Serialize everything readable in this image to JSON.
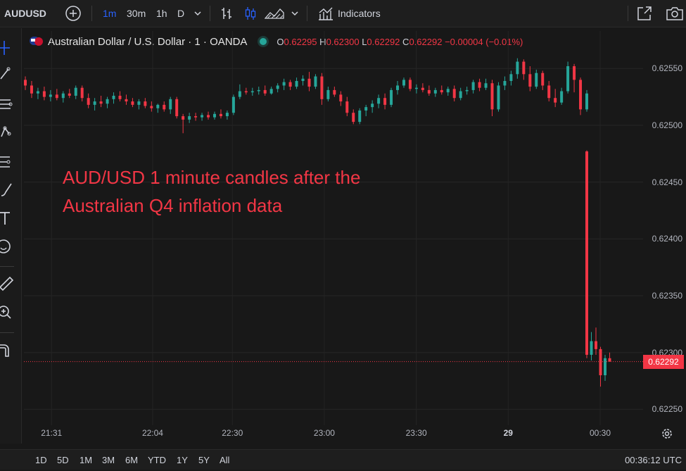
{
  "toolbar": {
    "symbol": "AUDUSD",
    "intervals": [
      "1m",
      "30m",
      "1h",
      "D"
    ],
    "active_interval": "1m",
    "indicators_label": "Indicators",
    "icons": [
      "add-symbol-icon",
      "chevron-down-icon",
      "bar-chart-icon",
      "candles-icon",
      "area-chart-icon",
      "chevron-down-icon",
      "indicators-icon",
      "fullscreen-icon",
      "camera-icon"
    ]
  },
  "left_tools": [
    "crosshair-icon",
    "trendline-icon",
    "fib-icon",
    "pattern-icon",
    "forecast-icon",
    "brush-icon",
    "text-icon",
    "emoji-icon",
    "ruler-icon",
    "zoom-icon",
    "magnet-icon"
  ],
  "legend": {
    "title": "Australian Dollar / U.S. Dollar · 1 · OANDA",
    "o_label": "O",
    "o_value": "0.62295",
    "h_label": "H",
    "h_value": "0.62300",
    "l_label": "L",
    "l_value": "0.62292",
    "c_label": "C",
    "c_value": "0.62292",
    "change": "−0.00004 (−0.01%)"
  },
  "annotation": {
    "line1": "AUD/USD 1 minute candles after the",
    "line2": "Australian Q4 inflation data"
  },
  "colors": {
    "up": "#26a69a",
    "down": "#f23645",
    "annotation": "#f23645",
    "background": "#181818"
  },
  "last_price": "0.62292",
  "bottom": {
    "ranges": [
      "1D",
      "5D",
      "1M",
      "3M",
      "6M",
      "YTD",
      "1Y",
      "5Y",
      "All"
    ],
    "clock": "00:36:12 UTC"
  },
  "chart_data": {
    "type": "candlestick",
    "title": "Australian Dollar / U.S. Dollar · 1 · OANDA",
    "ylim": [
      0.62236,
      0.62583
    ],
    "y_ticks": [
      "0.62550",
      "0.62500",
      "0.62450",
      "0.62400",
      "0.62350",
      "0.62300",
      "0.62250"
    ],
    "x_ticks": [
      "21:31",
      "22:04",
      "22:30",
      "23:00",
      "23:30",
      "29",
      "00:30"
    ],
    "x_range": [
      "21:22",
      "00:44"
    ],
    "candles": [
      [
        0.6254,
        0.62543,
        0.62531,
        0.62535
      ],
      [
        0.62535,
        0.62539,
        0.62524,
        0.62528
      ],
      [
        0.62528,
        0.62533,
        0.62523,
        0.6253
      ],
      [
        0.6253,
        0.62534,
        0.62522,
        0.62525
      ],
      [
        0.62525,
        0.62531,
        0.62521,
        0.62527
      ],
      [
        0.62527,
        0.62532,
        0.62522,
        0.62524
      ],
      [
        0.62524,
        0.6253,
        0.6252,
        0.62528
      ],
      [
        0.62528,
        0.62532,
        0.62524,
        0.62526
      ],
      [
        0.62526,
        0.62535,
        0.62523,
        0.62533
      ],
      [
        0.62533,
        0.62535,
        0.62521,
        0.62524
      ],
      [
        0.62524,
        0.62528,
        0.62515,
        0.62518
      ],
      [
        0.62518,
        0.62524,
        0.62513,
        0.62521
      ],
      [
        0.62521,
        0.62526,
        0.62516,
        0.62519
      ],
      [
        0.62519,
        0.62525,
        0.62515,
        0.62523
      ],
      [
        0.62523,
        0.62529,
        0.62519,
        0.62526
      ],
      [
        0.62526,
        0.6253,
        0.62521,
        0.62523
      ],
      [
        0.62523,
        0.62527,
        0.62518,
        0.62521
      ],
      [
        0.62521,
        0.62524,
        0.62516,
        0.62518
      ],
      [
        0.62518,
        0.62523,
        0.62514,
        0.62521
      ],
      [
        0.62521,
        0.62524,
        0.62515,
        0.62517
      ],
      [
        0.62517,
        0.62521,
        0.62512,
        0.62515
      ],
      [
        0.62515,
        0.62519,
        0.62511,
        0.62518
      ],
      [
        0.62518,
        0.62521,
        0.62512,
        0.62514
      ],
      [
        0.62514,
        0.62525,
        0.6251,
        0.62523
      ],
      [
        0.62523,
        0.62525,
        0.62506,
        0.62508
      ],
      [
        0.62508,
        0.6251,
        0.62493,
        0.62505
      ],
      [
        0.62505,
        0.62511,
        0.62502,
        0.62508
      ],
      [
        0.62508,
        0.62511,
        0.62504,
        0.62507
      ],
      [
        0.62507,
        0.62511,
        0.62504,
        0.62509
      ],
      [
        0.62509,
        0.62512,
        0.62505,
        0.62507
      ],
      [
        0.62507,
        0.62512,
        0.62505,
        0.6251
      ],
      [
        0.6251,
        0.62514,
        0.62506,
        0.62508
      ],
      [
        0.62508,
        0.62513,
        0.62505,
        0.62511
      ],
      [
        0.62511,
        0.62527,
        0.62509,
        0.62525
      ],
      [
        0.62525,
        0.62536,
        0.62523,
        0.6253
      ],
      [
        0.6253,
        0.62533,
        0.62527,
        0.62529
      ],
      [
        0.62529,
        0.62533,
        0.62526,
        0.6253
      ],
      [
        0.6253,
        0.62534,
        0.62527,
        0.62531
      ],
      [
        0.62531,
        0.62535,
        0.62526,
        0.62528
      ],
      [
        0.62528,
        0.62534,
        0.62527,
        0.62532
      ],
      [
        0.62532,
        0.62537,
        0.62529,
        0.62535
      ],
      [
        0.62535,
        0.62541,
        0.62531,
        0.62538
      ],
      [
        0.62538,
        0.6254,
        0.62531,
        0.62534
      ],
      [
        0.62534,
        0.62542,
        0.62532,
        0.62539
      ],
      [
        0.62539,
        0.62544,
        0.62535,
        0.62541
      ],
      [
        0.62541,
        0.62547,
        0.6253,
        0.62534
      ],
      [
        0.62534,
        0.62545,
        0.62532,
        0.62543
      ],
      [
        0.62543,
        0.62546,
        0.62518,
        0.62523
      ],
      [
        0.62523,
        0.62534,
        0.62521,
        0.62531
      ],
      [
        0.62531,
        0.62534,
        0.62525,
        0.62527
      ],
      [
        0.62527,
        0.6253,
        0.62517,
        0.62521
      ],
      [
        0.62521,
        0.62525,
        0.62508,
        0.62511
      ],
      [
        0.62511,
        0.62514,
        0.62501,
        0.62503
      ],
      [
        0.62503,
        0.62515,
        0.62501,
        0.62513
      ],
      [
        0.62513,
        0.62518,
        0.62508,
        0.62516
      ],
      [
        0.62516,
        0.62522,
        0.62511,
        0.62519
      ],
      [
        0.62519,
        0.62527,
        0.62515,
        0.62524
      ],
      [
        0.62524,
        0.62528,
        0.62514,
        0.62518
      ],
      [
        0.62518,
        0.62533,
        0.62516,
        0.62531
      ],
      [
        0.62531,
        0.62539,
        0.62527,
        0.62535
      ],
      [
        0.62535,
        0.62542,
        0.62533,
        0.6254
      ],
      [
        0.6254,
        0.62542,
        0.6253,
        0.62532
      ],
      [
        0.62532,
        0.62536,
        0.62528,
        0.62533
      ],
      [
        0.62533,
        0.62537,
        0.62529,
        0.62531
      ],
      [
        0.62531,
        0.62535,
        0.62526,
        0.62528
      ],
      [
        0.62528,
        0.62533,
        0.62525,
        0.62531
      ],
      [
        0.62531,
        0.62535,
        0.62527,
        0.62529
      ],
      [
        0.62529,
        0.62534,
        0.62526,
        0.62532
      ],
      [
        0.62532,
        0.62535,
        0.62521,
        0.62524
      ],
      [
        0.62524,
        0.62533,
        0.62522,
        0.6253
      ],
      [
        0.6253,
        0.62534,
        0.62527,
        0.62531
      ],
      [
        0.62531,
        0.6254,
        0.62528,
        0.62538
      ],
      [
        0.62538,
        0.62541,
        0.6253,
        0.62533
      ],
      [
        0.62533,
        0.62541,
        0.62531,
        0.62537
      ],
      [
        0.62537,
        0.6254,
        0.62508,
        0.62514
      ],
      [
        0.62514,
        0.62538,
        0.62512,
        0.62535
      ],
      [
        0.62535,
        0.62543,
        0.62531,
        0.62539
      ],
      [
        0.62539,
        0.62548,
        0.62535,
        0.62545
      ],
      [
        0.62545,
        0.62559,
        0.62541,
        0.62556
      ],
      [
        0.62556,
        0.62558,
        0.6254,
        0.62545
      ],
      [
        0.62545,
        0.62552,
        0.6253,
        0.62534
      ],
      [
        0.62534,
        0.62549,
        0.62532,
        0.62546
      ],
      [
        0.62546,
        0.62548,
        0.62531,
        0.62535
      ],
      [
        0.62535,
        0.62539,
        0.62521,
        0.62524
      ],
      [
        0.62524,
        0.62532,
        0.62516,
        0.6252
      ],
      [
        0.6252,
        0.62533,
        0.62518,
        0.6253
      ],
      [
        0.6253,
        0.62556,
        0.62528,
        0.62552
      ],
      [
        0.62552,
        0.62554,
        0.62529,
        0.6254
      ],
      [
        0.6254,
        0.62542,
        0.62509,
        0.62514
      ],
      [
        0.62514,
        0.62531,
        0.62512,
        0.62528
      ],
      [
        0.62477,
        0.62478,
        0.62295,
        0.62298
      ],
      [
        0.62298,
        0.62318,
        0.62293,
        0.6231
      ],
      [
        0.6231,
        0.62322,
        0.62298,
        0.62303
      ],
      [
        0.62303,
        0.62305,
        0.6227,
        0.6228
      ],
      [
        0.6228,
        0.62298,
        0.62275,
        0.62295
      ],
      [
        0.62295,
        0.623,
        0.62292,
        0.62292
      ]
    ]
  }
}
